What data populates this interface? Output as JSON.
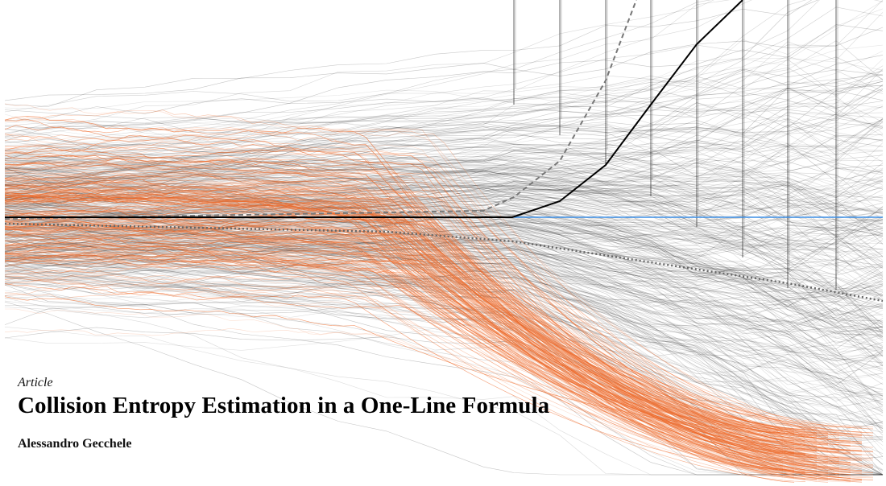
{
  "article": {
    "type_label": "Article",
    "title": "Collision Entropy Estimation in a One-Line Formula",
    "author": "Alessandro Gecchele"
  },
  "figure": {
    "colors": {
      "gray_lines": "#333333",
      "orange_lines": "#ee6a2a",
      "reference_line": "#3d8fe6",
      "highlight_line": "#000000",
      "dashed_line": "#777777",
      "dotted_line": "#666666"
    },
    "series_counts": {
      "gray": 420,
      "orange": 320
    }
  }
}
